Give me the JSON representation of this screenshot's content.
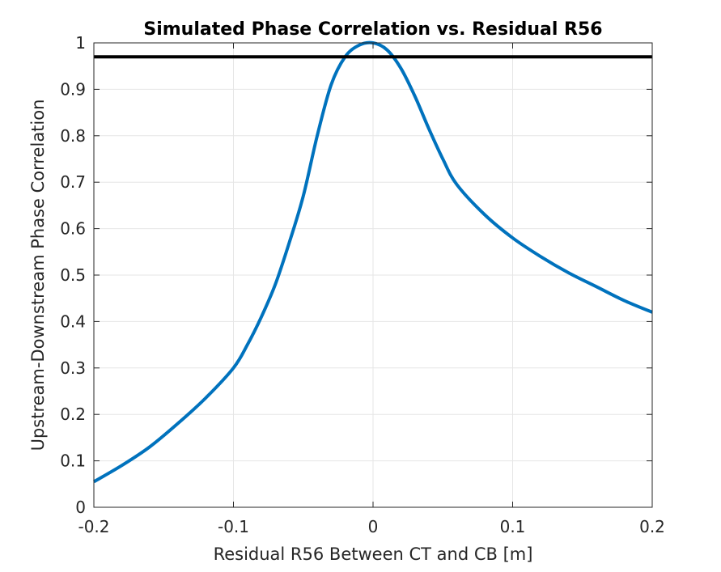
{
  "chart_data": {
    "type": "line",
    "title": "Simulated Phase Correlation vs. Residual R56",
    "xlabel": "Residual R56 Between CT and CB [m]",
    "ylabel": "Upstream-Downstream Phase Correlation",
    "xlim": [
      -0.2,
      0.2
    ],
    "ylim": [
      0,
      1
    ],
    "xticks": [
      -0.2,
      -0.1,
      0,
      0.1,
      0.2
    ],
    "xtick_labels": [
      "-0.2",
      "-0.1",
      "0",
      "0.1",
      "0.2"
    ],
    "yticks": [
      0,
      0.1,
      0.2,
      0.3,
      0.4,
      0.5,
      0.6,
      0.7,
      0.8,
      0.9,
      1
    ],
    "ytick_labels": [
      "0",
      "0.1",
      "0.2",
      "0.3",
      "0.4",
      "0.5",
      "0.6",
      "0.7",
      "0.8",
      "0.9",
      "1"
    ],
    "grid": true,
    "series": [
      {
        "color": "#0072BD",
        "x": [
          -0.2,
          -0.18,
          -0.16,
          -0.14,
          -0.12,
          -0.1,
          -0.09,
          -0.08,
          -0.07,
          -0.06,
          -0.05,
          -0.04,
          -0.03,
          -0.02,
          -0.01,
          0,
          0.01,
          0.02,
          0.03,
          0.04,
          0.05,
          0.06,
          0.08,
          0.1,
          0.12,
          0.14,
          0.16,
          0.18,
          0.2
        ],
        "y": [
          0.055,
          0.09,
          0.13,
          0.18,
          0.235,
          0.3,
          0.35,
          0.41,
          0.48,
          0.57,
          0.67,
          0.8,
          0.91,
          0.97,
          0.995,
          1.0,
          0.985,
          0.945,
          0.885,
          0.815,
          0.75,
          0.695,
          0.63,
          0.58,
          0.54,
          0.505,
          0.475,
          0.445,
          0.42
        ]
      },
      {
        "color": "#000000",
        "x": [
          -0.2,
          0.2
        ],
        "y": [
          0.97,
          0.97
        ]
      }
    ]
  }
}
